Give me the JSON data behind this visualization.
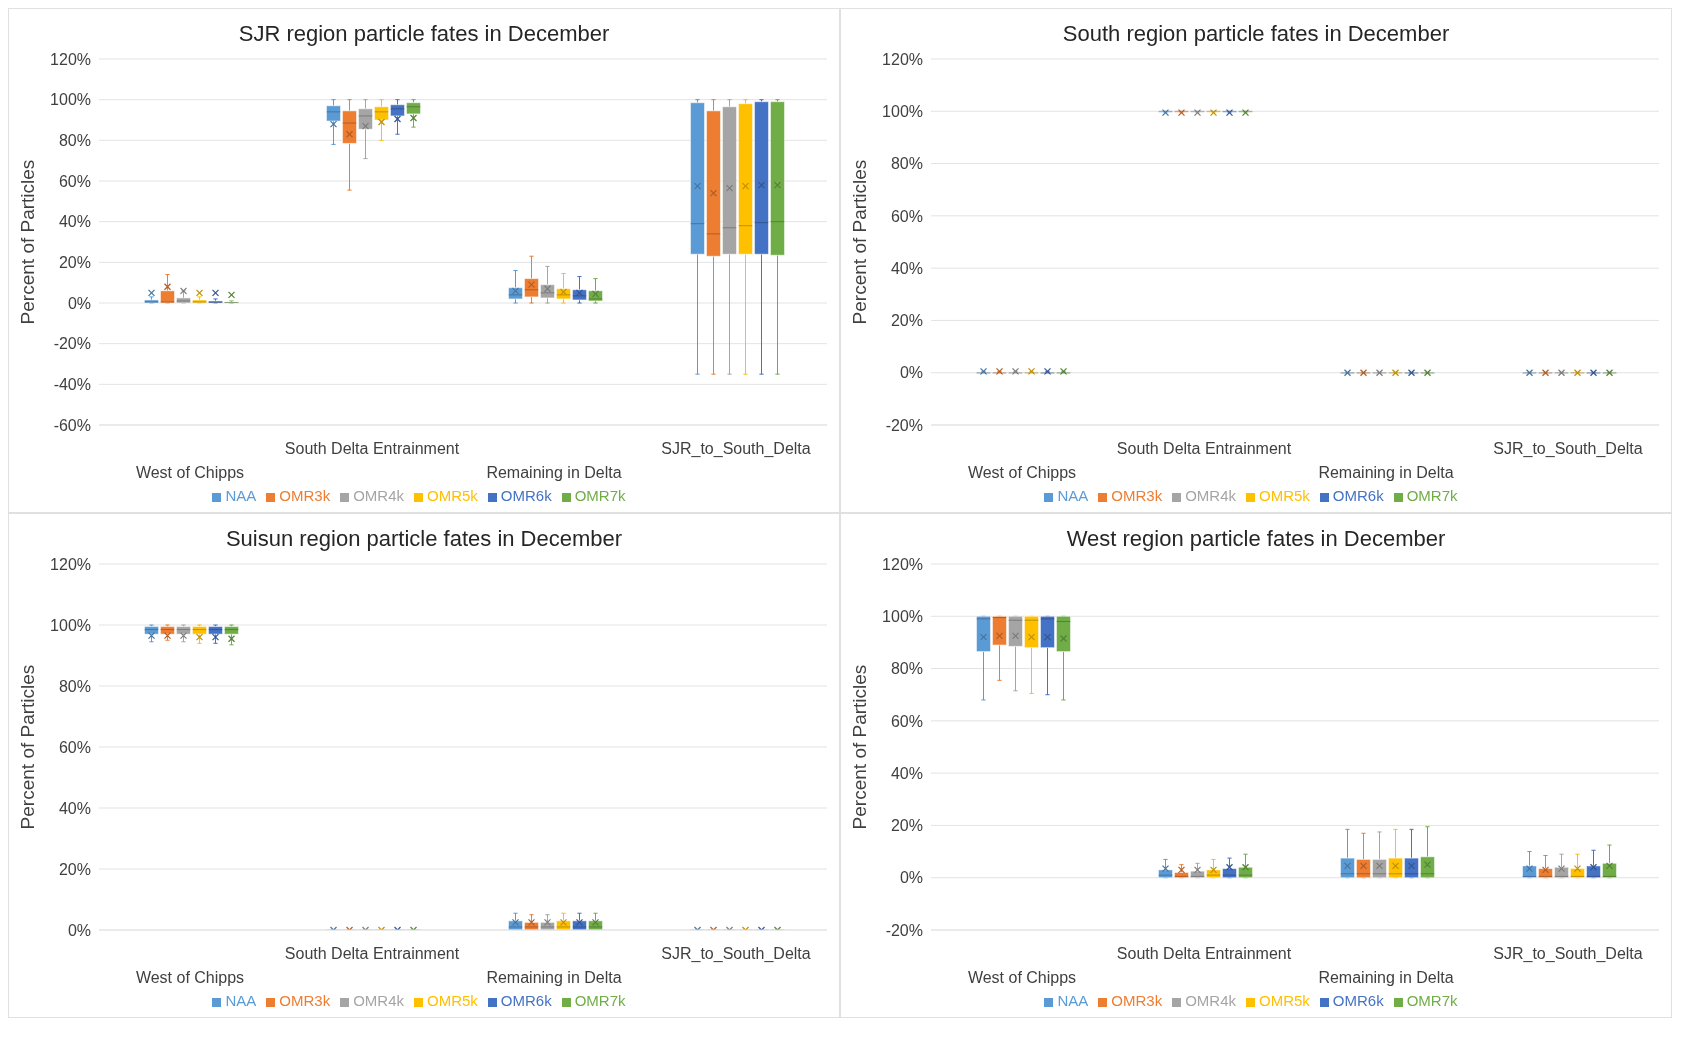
{
  "chart_data": [
    {
      "type": "box",
      "title": "SJR region particle fates in December",
      "ylabel": "Percent of Particles",
      "categories": [
        "West of Chipps",
        "South Delta Entrainment",
        "Remaining in Delta",
        "SJR_to_South_Delta"
      ],
      "ylim": [
        -60,
        120
      ],
      "yticks": [
        {
          "value": -60,
          "label": "-60%"
        },
        {
          "value": -40,
          "label": "-40%"
        },
        {
          "value": -20,
          "label": "-20%"
        },
        {
          "value": 0,
          "label": "0%"
        },
        {
          "value": 20,
          "label": "20%"
        },
        {
          "value": 40,
          "label": "40%"
        },
        {
          "value": 60,
          "label": "60%"
        },
        {
          "value": 80,
          "label": "80%"
        },
        {
          "value": 100,
          "label": "100%"
        },
        {
          "value": 120,
          "label": "120%"
        }
      ],
      "grid": "y",
      "legend": "bottom",
      "series": [
        {
          "name": "NAA",
          "color": "#5b9bd5",
          "boxes": [
            {
              "low": 0,
              "q1": 0,
              "median": 0.5,
              "q3": 1.5,
              "high": 3,
              "mean": 5
            },
            {
              "low": 78,
              "q1": 89.5,
              "median": 94,
              "q3": 97,
              "high": 100,
              "mean": 88
            },
            {
              "low": 0,
              "q1": 2,
              "median": 4,
              "q3": 7.5,
              "high": 16,
              "mean": 6
            },
            {
              "low": -35,
              "q1": 24,
              "median": 39,
              "q3": 98.5,
              "high": 100,
              "mean": 57.5
            }
          ]
        },
        {
          "name": "OMR3k",
          "color": "#ed7d31",
          "boxes": [
            {
              "low": 0,
              "q1": 0,
              "median": 0.5,
              "q3": 6,
              "high": 14,
              "mean": 8
            },
            {
              "low": 55.5,
              "q1": 78.5,
              "median": 88.5,
              "q3": 94.5,
              "high": 100,
              "mean": 83
            },
            {
              "low": 0,
              "q1": 3,
              "median": 6.5,
              "q3": 12,
              "high": 23,
              "mean": 9
            },
            {
              "low": -35,
              "q1": 23,
              "median": 34,
              "q3": 94.5,
              "high": 100,
              "mean": 54
            }
          ]
        },
        {
          "name": "OMR4k",
          "color": "#a5a5a5",
          "boxes": [
            {
              "low": 0,
              "q1": 0,
              "median": 1,
              "q3": 2.5,
              "high": 6,
              "mean": 6
            },
            {
              "low": 71,
              "q1": 85.5,
              "median": 92,
              "q3": 95.5,
              "high": 100,
              "mean": 87
            },
            {
              "low": 0,
              "q1": 2.5,
              "median": 5,
              "q3": 9,
              "high": 18,
              "mean": 7
            },
            {
              "low": -35,
              "q1": 24,
              "median": 37,
              "q3": 96.5,
              "high": 100,
              "mean": 56.5
            }
          ]
        },
        {
          "name": "OMR5k",
          "color": "#ffc000",
          "boxes": [
            {
              "low": 0,
              "q1": 0,
              "median": 0.5,
              "q3": 1.5,
              "high": 3,
              "mean": 5
            },
            {
              "low": 80,
              "q1": 90,
              "median": 94,
              "q3": 96.5,
              "high": 100,
              "mean": 89
            },
            {
              "low": 0,
              "q1": 2,
              "median": 4,
              "q3": 7,
              "high": 14.5,
              "mean": 5.5
            },
            {
              "low": -35,
              "q1": 24,
              "median": 38,
              "q3": 98,
              "high": 100,
              "mean": 57.5
            }
          ]
        },
        {
          "name": "OMR6k",
          "color": "#4472c4",
          "boxes": [
            {
              "low": 0,
              "q1": 0,
              "median": 0.3,
              "q3": 1,
              "high": 2,
              "mean": 5
            },
            {
              "low": 83,
              "q1": 92,
              "median": 95.5,
              "q3": 97.5,
              "high": 100,
              "mean": 90.5
            },
            {
              "low": 0,
              "q1": 1.5,
              "median": 3.5,
              "q3": 6.5,
              "high": 13,
              "mean": 5
            },
            {
              "low": -35,
              "q1": 24,
              "median": 39.5,
              "q3": 99,
              "high": 100,
              "mean": 58
            }
          ]
        },
        {
          "name": "OMR7k",
          "color": "#70ad47",
          "boxes": [
            {
              "low": 0,
              "q1": 0,
              "median": 0.2,
              "q3": 0.5,
              "high": 1,
              "mean": 4
            },
            {
              "low": 86.5,
              "q1": 93,
              "median": 96.5,
              "q3": 98.5,
              "high": 100,
              "mean": 91
            },
            {
              "low": 0,
              "q1": 1,
              "median": 2,
              "q3": 6,
              "high": 12,
              "mean": 4.5
            },
            {
              "low": -35,
              "q1": 23.5,
              "median": 40,
              "q3": 99,
              "high": 100,
              "mean": 58
            }
          ]
        }
      ]
    },
    {
      "type": "box",
      "title": "South region particle fates in December",
      "ylabel": "Percent of Particles",
      "categories": [
        "West of Chipps",
        "South Delta Entrainment",
        "Remaining in Delta",
        "SJR_to_South_Delta"
      ],
      "ylim": [
        -20,
        120
      ],
      "yticks": [
        {
          "value": -20,
          "label": "-20%"
        },
        {
          "value": 0,
          "label": "0%"
        },
        {
          "value": 20,
          "label": "20%"
        },
        {
          "value": 40,
          "label": "40%"
        },
        {
          "value": 60,
          "label": "60%"
        },
        {
          "value": 80,
          "label": "80%"
        },
        {
          "value": 100,
          "label": "100%"
        },
        {
          "value": 120,
          "label": "120%"
        }
      ],
      "grid": "y",
      "legend": "bottom",
      "series": [
        {
          "name": "NAA",
          "color": "#5b9bd5",
          "boxes": [
            {
              "low": 0,
              "q1": 0,
              "median": 0,
              "q3": 0,
              "high": 0.5,
              "mean": 0.5
            },
            {
              "low": 99.5,
              "q1": 100,
              "median": 100,
              "q3": 100,
              "high": 100,
              "mean": 99.5
            },
            {
              "low": 0,
              "q1": 0,
              "median": 0,
              "q3": 0,
              "high": 0,
              "mean": 0
            },
            {
              "low": 0,
              "q1": 0,
              "median": 0,
              "q3": 0,
              "high": 0,
              "mean": 0
            }
          ]
        },
        {
          "name": "OMR3k",
          "color": "#ed7d31",
          "boxes": [
            {
              "low": 0,
              "q1": 0,
              "median": 0,
              "q3": 0,
              "high": 0.5,
              "mean": 0.5
            },
            {
              "low": 99.5,
              "q1": 100,
              "median": 100,
              "q3": 100,
              "high": 100,
              "mean": 99.5
            },
            {
              "low": 0,
              "q1": 0,
              "median": 0,
              "q3": 0,
              "high": 0,
              "mean": 0
            },
            {
              "low": 0,
              "q1": 0,
              "median": 0,
              "q3": 0,
              "high": 0,
              "mean": 0
            }
          ]
        },
        {
          "name": "OMR4k",
          "color": "#a5a5a5",
          "boxes": [
            {
              "low": 0,
              "q1": 0,
              "median": 0,
              "q3": 0,
              "high": 0.5,
              "mean": 0.5
            },
            {
              "low": 99.5,
              "q1": 100,
              "median": 100,
              "q3": 100,
              "high": 100,
              "mean": 99.5
            },
            {
              "low": 0,
              "q1": 0,
              "median": 0,
              "q3": 0,
              "high": 0,
              "mean": 0
            },
            {
              "low": 0,
              "q1": 0,
              "median": 0,
              "q3": 0,
              "high": 0,
              "mean": 0
            }
          ]
        },
        {
          "name": "OMR5k",
          "color": "#ffc000",
          "boxes": [
            {
              "low": 0,
              "q1": 0,
              "median": 0,
              "q3": 0,
              "high": 0.5,
              "mean": 0.5
            },
            {
              "low": 99.5,
              "q1": 100,
              "median": 100,
              "q3": 100,
              "high": 100,
              "mean": 99.5
            },
            {
              "low": 0,
              "q1": 0,
              "median": 0,
              "q3": 0,
              "high": 0,
              "mean": 0
            },
            {
              "low": 0,
              "q1": 0,
              "median": 0,
              "q3": 0,
              "high": 0,
              "mean": 0
            }
          ]
        },
        {
          "name": "OMR6k",
          "color": "#4472c4",
          "boxes": [
            {
              "low": 0,
              "q1": 0,
              "median": 0,
              "q3": 0,
              "high": 0.5,
              "mean": 0.5
            },
            {
              "low": 99.5,
              "q1": 100,
              "median": 100,
              "q3": 100,
              "high": 100,
              "mean": 99.5
            },
            {
              "low": 0,
              "q1": 0,
              "median": 0,
              "q3": 0,
              "high": 0,
              "mean": 0
            },
            {
              "low": 0,
              "q1": 0,
              "median": 0,
              "q3": 0,
              "high": 0,
              "mean": 0
            }
          ]
        },
        {
          "name": "OMR7k",
          "color": "#70ad47",
          "boxes": [
            {
              "low": 0,
              "q1": 0,
              "median": 0,
              "q3": 0,
              "high": 0.5,
              "mean": 0.5
            },
            {
              "low": 99.5,
              "q1": 100,
              "median": 100,
              "q3": 100,
              "high": 100,
              "mean": 99.5
            },
            {
              "low": 0,
              "q1": 0,
              "median": 0,
              "q3": 0,
              "high": 0,
              "mean": 0
            },
            {
              "low": 0,
              "q1": 0,
              "median": 0,
              "q3": 0,
              "high": 0,
              "mean": 0
            }
          ]
        }
      ]
    },
    {
      "type": "box",
      "title": "Suisun region particle fates in December",
      "ylabel": "Percent of Particles",
      "categories": [
        "West of Chipps",
        "South Delta Entrainment",
        "Remaining in Delta",
        "SJR_to_South_Delta"
      ],
      "ylim": [
        0,
        120
      ],
      "yticks": [
        {
          "value": 0,
          "label": "0%"
        },
        {
          "value": 20,
          "label": "20%"
        },
        {
          "value": 40,
          "label": "40%"
        },
        {
          "value": 60,
          "label": "60%"
        },
        {
          "value": 80,
          "label": "80%"
        },
        {
          "value": 100,
          "label": "100%"
        },
        {
          "value": 120,
          "label": "120%"
        }
      ],
      "grid": "y",
      "legend": "bottom",
      "series": [
        {
          "name": "NAA",
          "color": "#5b9bd5",
          "boxes": [
            {
              "low": 94.5,
              "q1": 97,
              "median": 98.5,
              "q3": 99.5,
              "high": 100,
              "mean": 96.5
            },
            {
              "low": 0,
              "q1": 0,
              "median": 0,
              "q3": 0,
              "high": 0,
              "mean": 0
            },
            {
              "low": 0,
              "q1": 0,
              "median": 1,
              "q3": 3,
              "high": 5.5,
              "mean": 2.5
            },
            {
              "low": 0,
              "q1": 0,
              "median": 0,
              "q3": 0,
              "high": 0,
              "mean": 0
            }
          ]
        },
        {
          "name": "OMR3k",
          "color": "#ed7d31",
          "boxes": [
            {
              "low": 95,
              "q1": 97,
              "median": 98.5,
              "q3": 99.5,
              "high": 100,
              "mean": 96.5
            },
            {
              "low": 0,
              "q1": 0,
              "median": 0,
              "q3": 0,
              "high": 0,
              "mean": 0
            },
            {
              "low": 0,
              "q1": 0,
              "median": 1,
              "q3": 2.5,
              "high": 5,
              "mean": 2.5
            },
            {
              "low": 0,
              "q1": 0,
              "median": 0,
              "q3": 0,
              "high": 0,
              "mean": 0
            }
          ]
        },
        {
          "name": "OMR4k",
          "color": "#a5a5a5",
          "boxes": [
            {
              "low": 94.5,
              "q1": 97,
              "median": 98.5,
              "q3": 99.5,
              "high": 100,
              "mean": 96.5
            },
            {
              "low": 0,
              "q1": 0,
              "median": 0,
              "q3": 0,
              "high": 0,
              "mean": 0
            },
            {
              "low": 0,
              "q1": 0,
              "median": 1,
              "q3": 2.5,
              "high": 5,
              "mean": 2.5
            },
            {
              "low": 0,
              "q1": 0,
              "median": 0,
              "q3": 0,
              "high": 0,
              "mean": 0
            }
          ]
        },
        {
          "name": "OMR5k",
          "color": "#ffc000",
          "boxes": [
            {
              "low": 94,
              "q1": 97,
              "median": 98.5,
              "q3": 99.5,
              "high": 100,
              "mean": 96
            },
            {
              "low": 0,
              "q1": 0,
              "median": 0,
              "q3": 0,
              "high": 0,
              "mean": 0
            },
            {
              "low": 0,
              "q1": 0,
              "median": 1,
              "q3": 3,
              "high": 5.5,
              "mean": 2.5
            },
            {
              "low": 0,
              "q1": 0,
              "median": 0,
              "q3": 0,
              "high": 0,
              "mean": 0
            }
          ]
        },
        {
          "name": "OMR6k",
          "color": "#4472c4",
          "boxes": [
            {
              "low": 94,
              "q1": 97,
              "median": 98.5,
              "q3": 99.5,
              "high": 100,
              "mean": 96
            },
            {
              "low": 0,
              "q1": 0,
              "median": 0,
              "q3": 0,
              "high": 0,
              "mean": 0
            },
            {
              "low": 0,
              "q1": 0,
              "median": 1,
              "q3": 3,
              "high": 5.5,
              "mean": 2.5
            },
            {
              "low": 0,
              "q1": 0,
              "median": 0,
              "q3": 0,
              "high": 0,
              "mean": 0
            }
          ]
        },
        {
          "name": "OMR7k",
          "color": "#70ad47",
          "boxes": [
            {
              "low": 93.5,
              "q1": 97,
              "median": 98.5,
              "q3": 99.5,
              "high": 100,
              "mean": 95.5
            },
            {
              "low": 0,
              "q1": 0,
              "median": 0,
              "q3": 0,
              "high": 0,
              "mean": 0
            },
            {
              "low": 0,
              "q1": 0,
              "median": 1,
              "q3": 3,
              "high": 5.5,
              "mean": 2.5
            },
            {
              "low": 0,
              "q1": 0,
              "median": 0,
              "q3": 0,
              "high": 0,
              "mean": 0
            }
          ]
        }
      ]
    },
    {
      "type": "box",
      "title": "West region particle fates in December",
      "ylabel": "Percent of Particles",
      "categories": [
        "West of Chipps",
        "South Delta Entrainment",
        "Remaining in Delta",
        "SJR_to_South_Delta"
      ],
      "ylim": [
        -20,
        120
      ],
      "yticks": [
        {
          "value": -20,
          "label": "-20%"
        },
        {
          "value": 0,
          "label": "0%"
        },
        {
          "value": 20,
          "label": "20%"
        },
        {
          "value": 40,
          "label": "40%"
        },
        {
          "value": 60,
          "label": "60%"
        },
        {
          "value": 80,
          "label": "80%"
        },
        {
          "value": 100,
          "label": "100%"
        },
        {
          "value": 120,
          "label": "120%"
        }
      ],
      "grid": "y",
      "legend": "bottom",
      "series": [
        {
          "name": "NAA",
          "color": "#5b9bd5",
          "boxes": [
            {
              "low": 68,
              "q1": 86.5,
              "median": 99,
              "q3": 100,
              "high": 100,
              "mean": 92
            },
            {
              "low": 0,
              "q1": 0,
              "median": 1,
              "q3": 3,
              "high": 7,
              "mean": 3.5
            },
            {
              "low": 0,
              "q1": 0,
              "median": 1.5,
              "q3": 7.5,
              "high": 18.5,
              "mean": 4.5
            },
            {
              "low": 0,
              "q1": 0,
              "median": 0.5,
              "q3": 4.5,
              "high": 10,
              "mean": 3.5
            }
          ]
        },
        {
          "name": "OMR3k",
          "color": "#ed7d31",
          "boxes": [
            {
              "low": 75.5,
              "q1": 89,
              "median": 99.5,
              "q3": 100,
              "high": 100,
              "mean": 92.5
            },
            {
              "low": 0,
              "q1": 0,
              "median": 0.5,
              "q3": 2,
              "high": 5,
              "mean": 3
            },
            {
              "low": 0,
              "q1": 0,
              "median": 1.5,
              "q3": 7,
              "high": 17,
              "mean": 4.5
            },
            {
              "low": 0,
              "q1": 0,
              "median": 0.5,
              "q3": 3.5,
              "high": 8.5,
              "mean": 3
            }
          ]
        },
        {
          "name": "OMR4k",
          "color": "#a5a5a5",
          "boxes": [
            {
              "low": 71.5,
              "q1": 88.5,
              "median": 98.5,
              "q3": 100,
              "high": 100,
              "mean": 92.5
            },
            {
              "low": 0,
              "q1": 0,
              "median": 0.5,
              "q3": 2.5,
              "high": 5.5,
              "mean": 3
            },
            {
              "low": 0,
              "q1": 0,
              "median": 1.5,
              "q3": 7,
              "high": 17.5,
              "mean": 4.5
            },
            {
              "low": 0,
              "q1": 0,
              "median": 0.5,
              "q3": 4,
              "high": 9,
              "mean": 3.5
            }
          ]
        },
        {
          "name": "OMR5k",
          "color": "#ffc000",
          "boxes": [
            {
              "low": 70.5,
              "q1": 88,
              "median": 98.5,
              "q3": 100,
              "high": 100,
              "mean": 92
            },
            {
              "low": 0,
              "q1": 0,
              "median": 1,
              "q3": 3,
              "high": 7,
              "mean": 3
            },
            {
              "low": 0,
              "q1": 0,
              "median": 1.5,
              "q3": 7.5,
              "high": 18.5,
              "mean": 4.5
            },
            {
              "low": 0,
              "q1": 0,
              "median": 0.5,
              "q3": 3.5,
              "high": 9,
              "mean": 3.5
            }
          ]
        },
        {
          "name": "OMR6k",
          "color": "#4472c4",
          "boxes": [
            {
              "low": 70,
              "q1": 88,
              "median": 99,
              "q3": 100,
              "high": 100,
              "mean": 92
            },
            {
              "low": 0,
              "q1": 0,
              "median": 1,
              "q3": 3.5,
              "high": 7.5,
              "mean": 4
            },
            {
              "low": 0,
              "q1": 0,
              "median": 1.5,
              "q3": 7.5,
              "high": 18.5,
              "mean": 4.5
            },
            {
              "low": 0,
              "q1": 0,
              "median": 0.5,
              "q3": 4.5,
              "high": 10.5,
              "mean": 4
            }
          ]
        },
        {
          "name": "OMR7k",
          "color": "#70ad47",
          "boxes": [
            {
              "low": 68,
              "q1": 86.5,
              "median": 98,
              "q3": 100,
              "high": 100,
              "mean": 91.5
            },
            {
              "low": 0,
              "q1": 0,
              "median": 1,
              "q3": 4,
              "high": 9,
              "mean": 4
            },
            {
              "low": 0,
              "q1": 0,
              "median": 1.5,
              "q3": 8,
              "high": 19.5,
              "mean": 5
            },
            {
              "low": 0,
              "q1": 0,
              "median": 0.5,
              "q3": 5.5,
              "high": 12.5,
              "mean": 4.5
            }
          ]
        }
      ]
    }
  ]
}
